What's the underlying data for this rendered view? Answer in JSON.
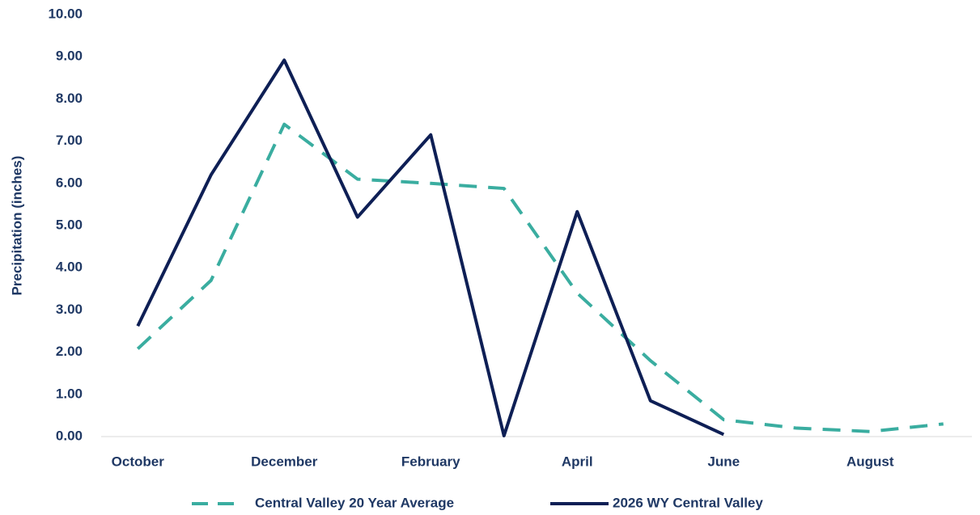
{
  "chart_data": {
    "type": "line",
    "y_label": "Precipitation (inches)",
    "categories": [
      "October",
      null,
      "December",
      null,
      "February",
      null,
      "April",
      null,
      "June",
      null,
      "August",
      null
    ],
    "series": [
      {
        "name": "Central Valley 20 Year Average",
        "color": "#3aada0",
        "dashed": true,
        "values": [
          2.08,
          3.7,
          7.4,
          6.1,
          6.0,
          5.88,
          3.4,
          1.8,
          0.4,
          0.2,
          0.12,
          0.3
        ]
      },
      {
        "name": "2026 WY Central Valley",
        "color": "#0e1f55",
        "dashed": false,
        "values": [
          2.62,
          6.2,
          8.92,
          5.2,
          7.15,
          0.02,
          5.33,
          0.85,
          0.05,
          null,
          null,
          null
        ]
      }
    ],
    "ylim": [
      0,
      10
    ],
    "yticks": [
      {
        "value": 0,
        "label": "0.00"
      },
      {
        "value": 1,
        "label": "1.00"
      },
      {
        "value": 2,
        "label": "2.00"
      },
      {
        "value": 3,
        "label": "3.00"
      },
      {
        "value": 4,
        "label": "4.00"
      },
      {
        "value": 5,
        "label": "5.00"
      },
      {
        "value": 6,
        "label": "6.00"
      },
      {
        "value": 7,
        "label": "7.00"
      },
      {
        "value": 8,
        "label": "8.00"
      },
      {
        "value": 9,
        "label": "9.00"
      },
      {
        "value": 10,
        "label": "10.00"
      }
    ],
    "grid": false
  }
}
